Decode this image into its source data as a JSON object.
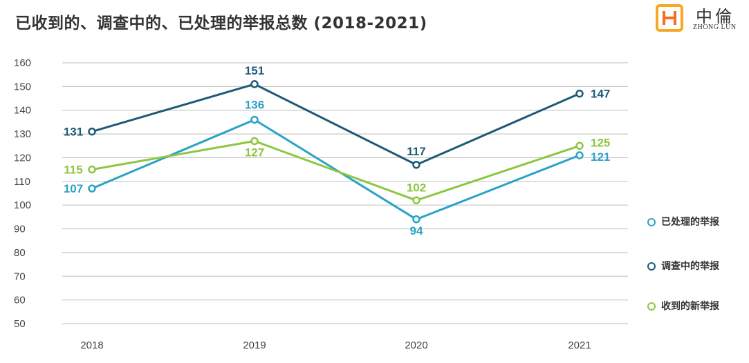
{
  "title": "已收到的、调查中的、已处理的举报总数 (2018-2021)",
  "logo": {
    "cn": "中倫",
    "en": "ZHONG LUN",
    "colors": [
      "#f7a823",
      "#f36f21"
    ]
  },
  "chart_data": {
    "type": "line",
    "categories": [
      "2018",
      "2019",
      "2020",
      "2021"
    ],
    "ylim": [
      50,
      160
    ],
    "yticks": [
      160,
      150,
      140,
      130,
      120,
      110,
      100,
      90,
      80,
      70,
      60,
      50
    ],
    "grid": true,
    "legend_position": "right",
    "series": [
      {
        "name": "已处理的举报",
        "color": "#29a3c6",
        "values": [
          107,
          136,
          94,
          121
        ]
      },
      {
        "name": "调查中的举报",
        "color": "#1e5a78",
        "values": [
          131,
          151,
          117,
          147
        ]
      },
      {
        "name": "收到的新举报",
        "color": "#8dc63f",
        "values": [
          115,
          127,
          102,
          125
        ]
      }
    ]
  }
}
